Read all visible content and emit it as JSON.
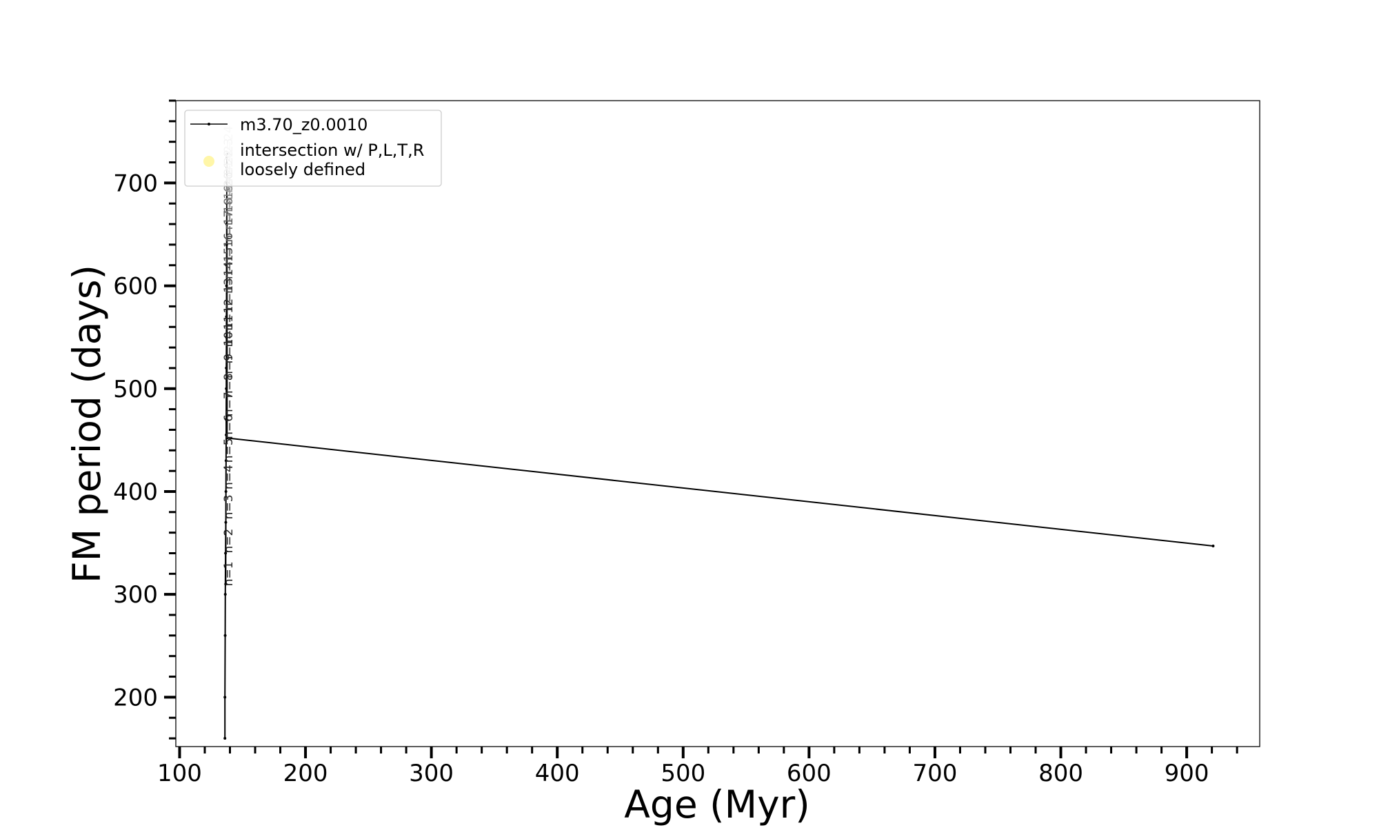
{
  "chart_data": {
    "type": "line",
    "title": "",
    "xlabel": "Age (Myr)",
    "ylabel": "FM period (days)",
    "xlim": [
      97,
      958
    ],
    "ylim": [
      152,
      780
    ],
    "x_ticks": [
      100,
      200,
      300,
      400,
      500,
      600,
      700,
      800,
      900
    ],
    "y_ticks": [
      200,
      300,
      400,
      500,
      600,
      700
    ],
    "x_tick_labels": [
      "100",
      "200",
      "300",
      "400",
      "500",
      "600",
      "700",
      "800",
      "900"
    ],
    "y_tick_labels": [
      "200",
      "300",
      "400",
      "500",
      "600",
      "700"
    ],
    "x_minor_step": 20,
    "y_minor_step": 20,
    "grid": false,
    "legend_position": "top-left",
    "legend": [
      {
        "label": "m3.70_z0.0010",
        "marker": "line",
        "color": "#000000"
      },
      {
        "label": "intersection w/ P,L,T,R\nloosely defined",
        "marker": "circle",
        "color": "#fff6a8"
      }
    ],
    "series": [
      {
        "name": "m3.70_z0.0010",
        "color": "#000000",
        "x": [
          136.0,
          136.0,
          136.2,
          136.3,
          136.5,
          136.7,
          136.6,
          136.8,
          136.9,
          137.0,
          137.0,
          137.1,
          137.1,
          137.2,
          137.2,
          137.3,
          137.3,
          137.4,
          137.4,
          137.5,
          137.5,
          137.5,
          137.6,
          137.6,
          137.7,
          921.0
        ],
        "y": [
          160,
          200,
          260,
          300,
          340,
          370,
          310,
          400,
          430,
          455,
          470,
          500,
          520,
          550,
          570,
          600,
          620,
          640,
          660,
          680,
          700,
          715,
          725,
          728,
          452,
          347
        ]
      }
    ],
    "annotations": [
      {
        "text": "n=1",
        "x": 142,
        "y": 320,
        "color": "#222222"
      },
      {
        "text": "n=2",
        "x": 142,
        "y": 352,
        "color": "#222222"
      },
      {
        "text": "n=3",
        "x": 142,
        "y": 385,
        "color": "#222222"
      },
      {
        "text": "n=4",
        "x": 142,
        "y": 414,
        "color": "#222222"
      },
      {
        "text": "n=5",
        "x": 142,
        "y": 440,
        "color": "#222222"
      },
      {
        "text": "n=6",
        "x": 142,
        "y": 463,
        "color": "#222222"
      },
      {
        "text": "n=7",
        "x": 142,
        "y": 485,
        "color": "#222222"
      },
      {
        "text": "n=8",
        "x": 142,
        "y": 503,
        "color": "#222222"
      },
      {
        "text": "n=9",
        "x": 142,
        "y": 522,
        "color": "#222222"
      },
      {
        "text": "n=10",
        "x": 142,
        "y": 540,
        "color": "#222222"
      },
      {
        "text": "n=11",
        "x": 142,
        "y": 556,
        "color": "#222222"
      },
      {
        "text": "n=12",
        "x": 142,
        "y": 572,
        "color": "#222222"
      },
      {
        "text": "n=13",
        "x": 142,
        "y": 592,
        "color": "#333333"
      },
      {
        "text": "n=14",
        "x": 142,
        "y": 608,
        "color": "#333333"
      },
      {
        "text": "n=15",
        "x": 142,
        "y": 622,
        "color": "#444444"
      },
      {
        "text": "n=16",
        "x": 142,
        "y": 636,
        "color": "#444444"
      },
      {
        "text": "n=17",
        "x": 142,
        "y": 658,
        "color": "#555555"
      },
      {
        "text": "n=18",
        "x": 142,
        "y": 670,
        "color": "#666666"
      },
      {
        "text": "n=19",
        "x": 142,
        "y": 683,
        "color": "#777777"
      },
      {
        "text": "n=20",
        "x": 142,
        "y": 695,
        "color": "#888888"
      },
      {
        "text": "n=21",
        "x": 142,
        "y": 706,
        "color": "#999999"
      },
      {
        "text": "n=22",
        "x": 142,
        "y": 717,
        "color": "#aaaaaa"
      },
      {
        "text": "n=23",
        "x": 142,
        "y": 728,
        "color": "#bbbbbb"
      },
      {
        "text": "n=24",
        "x": 142,
        "y": 740,
        "color": "#cccccc"
      }
    ]
  }
}
